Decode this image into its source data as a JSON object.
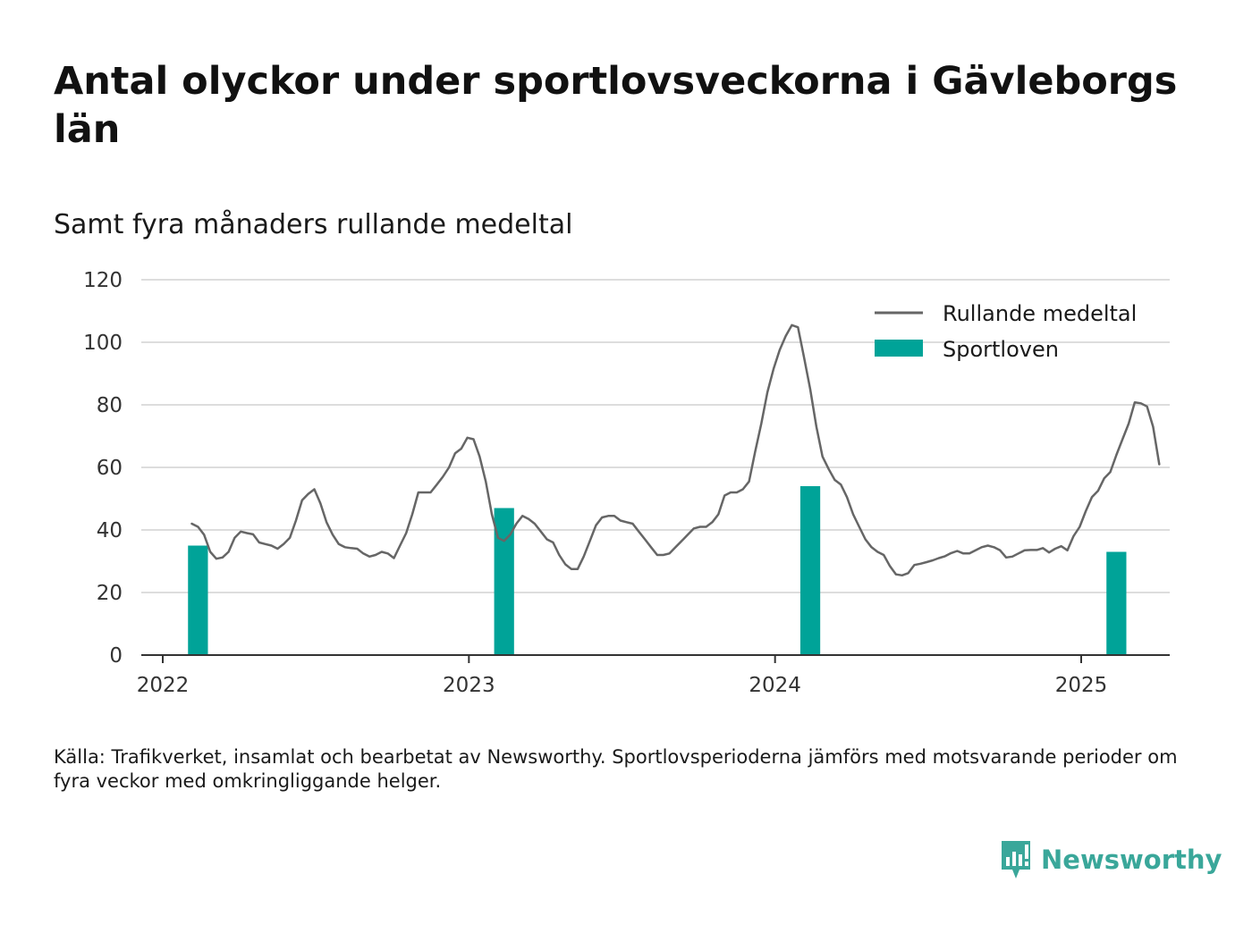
{
  "title": "Antal olyckor under sportlovsveckorna i Gävleborgs län",
  "subtitle": "Samt fyra månaders rullande medeltal",
  "source": "Källa: Trafikverket, insamlat och bearbetat av Newsworthy. Sportlovsperioderna jämförs med motsvarande perioder om fyra veckor med omkringliggande helger.",
  "brand": {
    "name": "Newsworthy",
    "logo_icon": "newsworthy-logo-icon"
  },
  "colors": {
    "bars": "#00a398",
    "line": "#666666",
    "grid": "#dddddd",
    "axis": "#333333",
    "brand": "#3aa79a"
  },
  "chart_data": {
    "type": "bar",
    "xlim": [
      2021.93,
      2025.28
    ],
    "ylim": [
      0,
      120
    ],
    "yticks": [
      0,
      20,
      40,
      60,
      80,
      100,
      120
    ],
    "xticks": [
      2022,
      2023,
      2024,
      2025
    ],
    "xtick_labels": [
      "2022",
      "2023",
      "2024",
      "2025"
    ],
    "grid": true,
    "legend_position": "top-right",
    "series": [
      {
        "name": "Rullande medeltal",
        "type": "line",
        "color": "#666666",
        "points": [
          [
            2022.095,
            42
          ],
          [
            2022.115,
            41
          ],
          [
            2022.135,
            38.5
          ],
          [
            2022.155,
            33
          ],
          [
            2022.175,
            30.8
          ],
          [
            2022.195,
            31.2
          ],
          [
            2022.215,
            33
          ],
          [
            2022.235,
            37.5
          ],
          [
            2022.255,
            39.5
          ],
          [
            2022.275,
            39
          ],
          [
            2022.295,
            38.6
          ],
          [
            2022.315,
            36
          ],
          [
            2022.335,
            35.5
          ],
          [
            2022.355,
            35
          ],
          [
            2022.375,
            34
          ],
          [
            2022.395,
            35.5
          ],
          [
            2022.415,
            37.5
          ],
          [
            2022.435,
            43
          ],
          [
            2022.455,
            49.5
          ],
          [
            2022.475,
            51.5
          ],
          [
            2022.495,
            53
          ],
          [
            2022.515,
            48.5
          ],
          [
            2022.535,
            42.5
          ],
          [
            2022.555,
            38.5
          ],
          [
            2022.575,
            35.5
          ],
          [
            2022.595,
            34.5
          ],
          [
            2022.615,
            34.2
          ],
          [
            2022.635,
            34
          ],
          [
            2022.655,
            32.5
          ],
          [
            2022.675,
            31.5
          ],
          [
            2022.695,
            32
          ],
          [
            2022.715,
            33
          ],
          [
            2022.735,
            32.5
          ],
          [
            2022.755,
            31
          ],
          [
            2022.775,
            35
          ],
          [
            2022.795,
            39
          ],
          [
            2022.815,
            45
          ],
          [
            2022.835,
            52
          ],
          [
            2022.855,
            52
          ],
          [
            2022.875,
            52
          ],
          [
            2022.895,
            54.5
          ],
          [
            2022.915,
            57
          ],
          [
            2022.935,
            60
          ],
          [
            2022.955,
            64.5
          ],
          [
            2022.975,
            66
          ],
          [
            2022.995,
            69.5
          ],
          [
            2023.015,
            69
          ],
          [
            2023.035,
            63.5
          ],
          [
            2023.055,
            55.5
          ],
          [
            2023.075,
            45
          ],
          [
            2023.095,
            37.5
          ],
          [
            2023.115,
            36.5
          ],
          [
            2023.135,
            38.5
          ],
          [
            2023.155,
            42
          ],
          [
            2023.175,
            44.5
          ],
          [
            2023.195,
            43.5
          ],
          [
            2023.215,
            42
          ],
          [
            2023.235,
            39.5
          ],
          [
            2023.255,
            37
          ],
          [
            2023.275,
            36
          ],
          [
            2023.295,
            32
          ],
          [
            2023.315,
            29
          ],
          [
            2023.335,
            27.5
          ],
          [
            2023.355,
            27.5
          ],
          [
            2023.375,
            31.5
          ],
          [
            2023.395,
            36.5
          ],
          [
            2023.415,
            41.5
          ],
          [
            2023.435,
            44
          ],
          [
            2023.455,
            44.5
          ],
          [
            2023.475,
            44.5
          ],
          [
            2023.495,
            43
          ],
          [
            2023.515,
            42.5
          ],
          [
            2023.535,
            42
          ],
          [
            2023.555,
            39.5
          ],
          [
            2023.575,
            37
          ],
          [
            2023.595,
            34.5
          ],
          [
            2023.615,
            32
          ],
          [
            2023.635,
            32
          ],
          [
            2023.655,
            32.5
          ],
          [
            2023.675,
            34.5
          ],
          [
            2023.695,
            36.5
          ],
          [
            2023.715,
            38.5
          ],
          [
            2023.735,
            40.5
          ],
          [
            2023.755,
            41
          ],
          [
            2023.775,
            41
          ],
          [
            2023.795,
            42.5
          ],
          [
            2023.815,
            45
          ],
          [
            2023.835,
            51
          ],
          [
            2023.855,
            52
          ],
          [
            2023.875,
            52
          ],
          [
            2023.895,
            53
          ],
          [
            2023.915,
            55.5
          ],
          [
            2023.935,
            65
          ],
          [
            2023.955,
            74
          ],
          [
            2023.975,
            84
          ],
          [
            2023.995,
            91.5
          ],
          [
            2024.015,
            97.5
          ],
          [
            2024.035,
            102
          ],
          [
            2024.055,
            105.5
          ],
          [
            2024.075,
            104.8
          ],
          [
            2024.095,
            95
          ],
          [
            2024.115,
            85
          ],
          [
            2024.135,
            73
          ],
          [
            2024.155,
            63.5
          ],
          [
            2024.175,
            59.5
          ],
          [
            2024.195,
            56
          ],
          [
            2024.215,
            54.5
          ],
          [
            2024.235,
            50.5
          ],
          [
            2024.255,
            45
          ],
          [
            2024.275,
            41
          ],
          [
            2024.295,
            37
          ],
          [
            2024.315,
            34.5
          ],
          [
            2024.335,
            33
          ],
          [
            2024.355,
            32
          ],
          [
            2024.375,
            28.5
          ],
          [
            2024.395,
            25.8
          ],
          [
            2024.415,
            25.5
          ],
          [
            2024.435,
            26.2
          ],
          [
            2024.455,
            28.8
          ],
          [
            2024.475,
            29.2
          ],
          [
            2024.495,
            29.7
          ],
          [
            2024.515,
            30.3
          ],
          [
            2024.535,
            31
          ],
          [
            2024.555,
            31.6
          ],
          [
            2024.575,
            32.6
          ],
          [
            2024.595,
            33.3
          ],
          [
            2024.615,
            32.5
          ],
          [
            2024.635,
            32.5
          ],
          [
            2024.655,
            33.5
          ],
          [
            2024.675,
            34.5
          ],
          [
            2024.695,
            35
          ],
          [
            2024.715,
            34.5
          ],
          [
            2024.735,
            33.5
          ],
          [
            2024.755,
            31.2
          ],
          [
            2024.775,
            31.5
          ],
          [
            2024.795,
            32.5
          ],
          [
            2024.815,
            33.5
          ],
          [
            2024.835,
            33.6
          ],
          [
            2024.855,
            33.6
          ],
          [
            2024.875,
            34.2
          ],
          [
            2024.895,
            32.8
          ],
          [
            2024.915,
            34
          ],
          [
            2024.935,
            34.8
          ],
          [
            2024.955,
            33.5
          ],
          [
            2024.975,
            38
          ],
          [
            2024.995,
            41
          ],
          [
            2025.015,
            46
          ],
          [
            2025.035,
            50.5
          ],
          [
            2025.055,
            52.5
          ],
          [
            2025.075,
            56.5
          ],
          [
            2025.095,
            58.5
          ],
          [
            2025.115,
            64
          ],
          [
            2025.135,
            69
          ],
          [
            2025.155,
            74
          ],
          [
            2025.175,
            80.8
          ],
          [
            2025.195,
            80.5
          ],
          [
            2025.215,
            79.5
          ],
          [
            2025.235,
            73
          ],
          [
            2025.255,
            61
          ]
        ]
      },
      {
        "name": "Sportloven",
        "type": "bar",
        "color": "#00a398",
        "x": [
          2022.115,
          2023.115,
          2024.115,
          2025.115
        ],
        "values": [
          35,
          47,
          54,
          33
        ],
        "bar_width_years": 0.065
      }
    ]
  }
}
